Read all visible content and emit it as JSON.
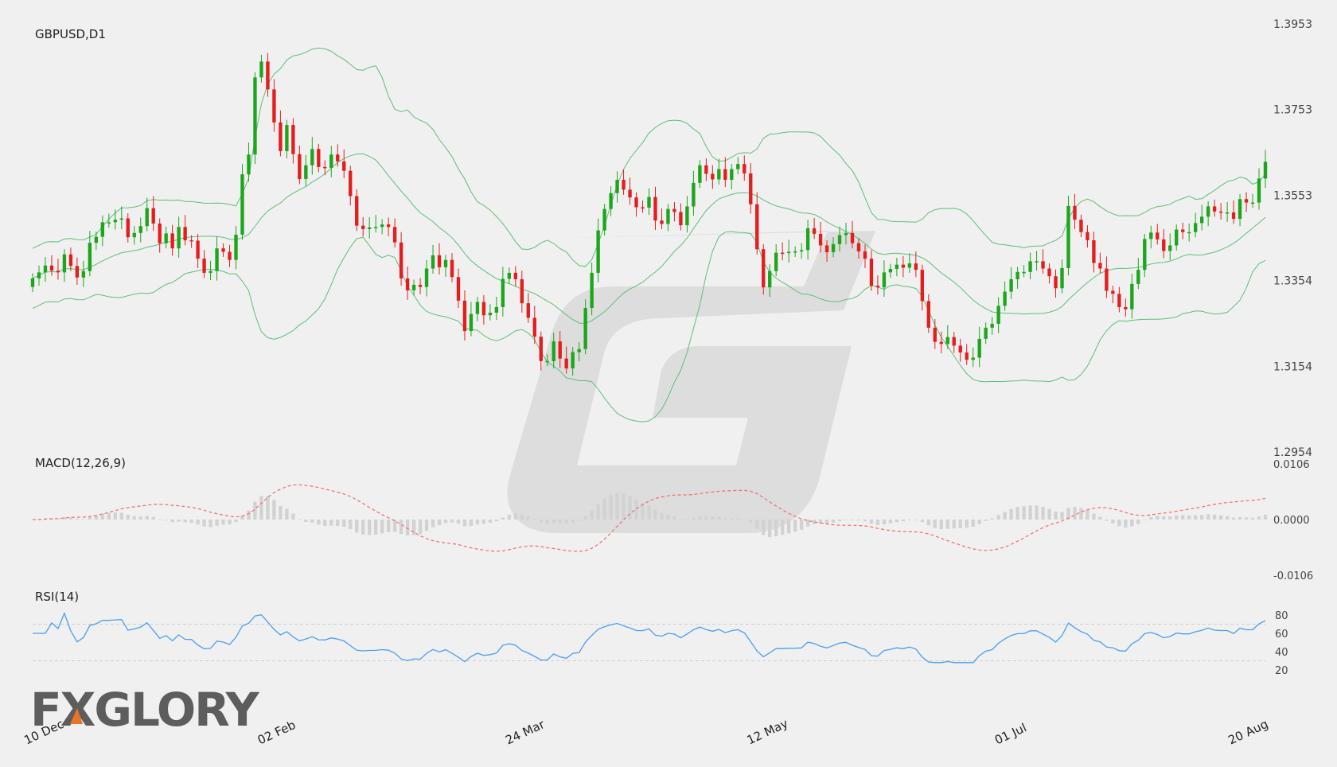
{
  "chart_data": {
    "type": "candlestick",
    "symbol_label": "GBPUSD,D1",
    "macd_label": "MACD(12,26,9)",
    "rsi_label": "RSI(14)",
    "logo_text": "FXGLORY",
    "price_axis": {
      "range": [
        1.2954,
        1.3953
      ],
      "ticks": [
        "1.3953",
        "1.3753",
        "1.3553",
        "1.3354",
        "1.3154",
        "1.2954"
      ]
    },
    "macd_axis": {
      "range": [
        -0.0106,
        0.0106
      ],
      "ticks": [
        "0.0106",
        "0.0000",
        "-0.0106"
      ]
    },
    "rsi_axis": {
      "range": [
        20,
        80
      ],
      "ticks": [
        "80",
        "60",
        "40",
        "20"
      ],
      "levels": [
        70,
        30
      ]
    },
    "x_labels": [
      "10 Dec",
      "02 Feb",
      "24 Mar",
      "12 May",
      "01 Jul",
      "20 Aug"
    ],
    "colors": {
      "bull": "#1ea51e",
      "bear": "#e41e1e",
      "bands": "#5dbf7a",
      "macd_signal": "#f26b6b",
      "macd_hist": "#d2d2d2",
      "rsi": "#4a9ef0",
      "logo_accent": "#e8742a"
    },
    "close_series": [
      1.3359,
      1.3373,
      1.3389,
      1.3377,
      1.3373,
      1.3415,
      1.3388,
      1.3361,
      1.3376,
      1.3442,
      1.3456,
      1.349,
      1.349,
      1.3496,
      1.3499,
      1.3455,
      1.3465,
      1.3481,
      1.3523,
      1.3487,
      1.3441,
      1.3464,
      1.3429,
      1.3479,
      1.3448,
      1.3447,
      1.3405,
      1.3372,
      1.3376,
      1.3429,
      1.3421,
      1.3402,
      1.3461,
      1.3602,
      1.3648,
      1.3828,
      1.3865,
      1.38,
      1.3723,
      1.3656,
      1.3717,
      1.3649,
      1.3591,
      1.3623,
      1.3661,
      1.3619,
      1.3617,
      1.3648,
      1.3632,
      1.361,
      1.3551,
      1.3482,
      1.3474,
      1.3478,
      1.3479,
      1.3485,
      1.3479,
      1.3443,
      1.3359,
      1.3331,
      1.3344,
      1.3339,
      1.3382,
      1.3413,
      1.3385,
      1.3402,
      1.3362,
      1.3307,
      1.3236,
      1.3276,
      1.3304,
      1.3273,
      1.3279,
      1.3292,
      1.3358,
      1.3372,
      1.3357,
      1.3301,
      1.3267,
      1.3223,
      1.3166,
      1.3166,
      1.3212,
      1.3172,
      1.3149,
      1.3187,
      1.3194,
      1.329,
      1.3372,
      1.3471,
      1.3521,
      1.3558,
      1.3589,
      1.3566,
      1.3548,
      1.3525,
      1.3524,
      1.3549,
      1.3494,
      1.3486,
      1.3521,
      1.3514,
      1.3483,
      1.3527,
      1.3582,
      1.3623,
      1.3603,
      1.359,
      1.3614,
      1.3589,
      1.3614,
      1.3626,
      1.3604,
      1.3532,
      1.3427,
      1.3338,
      1.3376,
      1.3419,
      1.3418,
      1.3421,
      1.3422,
      1.3425,
      1.3476,
      1.3463,
      1.3436,
      1.342,
      1.3439,
      1.346,
      1.3465,
      1.3441,
      1.3422,
      1.3405,
      1.3342,
      1.3338,
      1.3373,
      1.3381,
      1.3391,
      1.3384,
      1.3394,
      1.3379,
      1.3306,
      1.3244,
      1.3211,
      1.3206,
      1.3222,
      1.3202,
      1.3186,
      1.3169,
      1.3174,
      1.3218,
      1.3244,
      1.3253,
      1.3295,
      1.3328,
      1.3357,
      1.3374,
      1.3374,
      1.3399,
      1.3399,
      1.3382,
      1.3364,
      1.3336,
      1.3383,
      1.3528,
      1.3496,
      1.3467,
      1.3448,
      1.3395,
      1.3382,
      1.333,
      1.3323,
      1.3292,
      1.3287,
      1.3346,
      1.3379,
      1.3451,
      1.3466,
      1.345,
      1.3423,
      1.3436,
      1.3473,
      1.3467,
      1.3467,
      1.3488,
      1.3503,
      1.3527,
      1.3515,
      1.3513,
      1.3513,
      1.3498,
      1.3544,
      1.3536,
      1.3536,
      1.3592,
      1.3631
    ],
    "rsi_last": 68,
    "macd_last": 0.0026
  }
}
